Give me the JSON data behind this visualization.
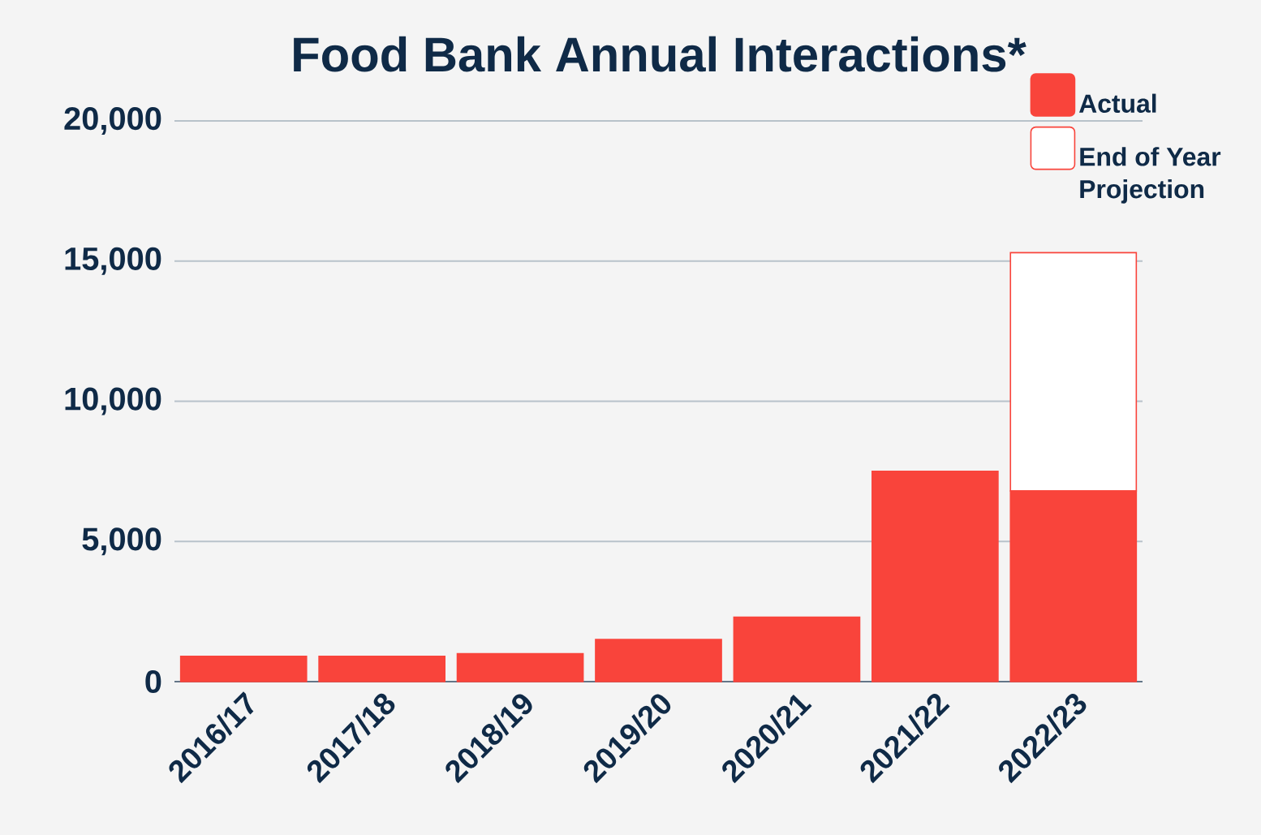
{
  "chart_data": {
    "type": "bar",
    "title": "Food Bank Annual Interactions*",
    "stacked": true,
    "categories": [
      "2016/17",
      "2017/18",
      "2018/19",
      "2019/20",
      "2020/21",
      "2021/22",
      "2022/23"
    ],
    "series": [
      {
        "name": "Actual",
        "color": "#f9443b",
        "values": [
          900,
          900,
          1000,
          1500,
          2300,
          7500,
          6800
        ]
      },
      {
        "name": "End of Year Projection",
        "color": "#ffffff",
        "values": [
          null,
          null,
          null,
          null,
          null,
          null,
          8500
        ]
      }
    ],
    "ylim": [
      0,
      20000
    ],
    "yticks": [
      {
        "value": 0,
        "label": "0"
      },
      {
        "value": 5000,
        "label": "5,000"
      },
      {
        "value": 10000,
        "label": "10,000"
      },
      {
        "value": 15000,
        "label": "15,000"
      },
      {
        "value": 20000,
        "label": "20,000"
      }
    ],
    "grid": "y",
    "legend": "top right"
  }
}
